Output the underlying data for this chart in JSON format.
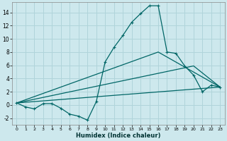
{
  "xlabel": "Humidex (Indice chaleur)",
  "bg_color": "#cde8ed",
  "grid_color": "#b0d4da",
  "line_color": "#006666",
  "xlim": [
    -0.5,
    23.5
  ],
  "ylim": [
    -3.0,
    15.5
  ],
  "yticks": [
    -2,
    0,
    2,
    4,
    6,
    8,
    10,
    12,
    14
  ],
  "xticks": [
    0,
    1,
    2,
    3,
    4,
    5,
    6,
    7,
    8,
    9,
    10,
    11,
    12,
    13,
    14,
    15,
    16,
    17,
    18,
    19,
    20,
    21,
    22,
    23
  ],
  "series1_x": [
    0,
    1,
    2,
    3,
    4,
    5,
    6,
    7,
    8,
    9,
    10,
    11,
    12,
    13,
    14,
    15,
    16,
    17,
    18,
    19,
    20,
    21,
    22,
    23
  ],
  "series1_y": [
    0.3,
    -0.3,
    -0.6,
    0.2,
    0.2,
    -0.5,
    -1.4,
    -1.7,
    -2.3,
    0.5,
    6.5,
    8.7,
    10.5,
    12.5,
    13.8,
    15.0,
    15.0,
    8.0,
    7.8,
    5.9,
    4.5,
    2.0,
    3.0,
    2.7
  ],
  "series2_x": [
    0,
    23
  ],
  "series2_y": [
    0.3,
    2.7
  ],
  "series3_x": [
    0,
    16,
    23
  ],
  "series3_y": [
    0.3,
    8.0,
    2.7
  ],
  "series4_x": [
    0,
    20,
    23
  ],
  "series4_y": [
    0.3,
    5.9,
    2.7
  ]
}
